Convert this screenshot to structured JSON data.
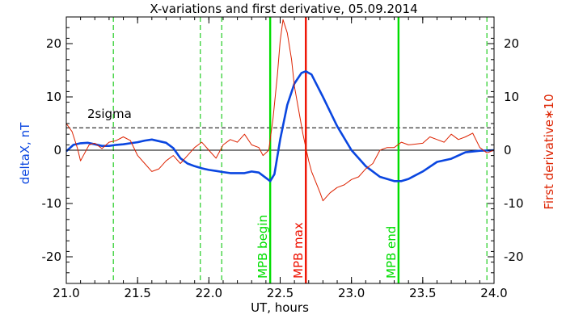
{
  "chart_data": {
    "type": "line",
    "title": "X-variations and first derivative, 05.09.2014",
    "xlabel": "UT, hours",
    "ylabel_left": "deltaX, nT",
    "ylabel_right": "First derivative∗10",
    "xlim": [
      21.0,
      24.0
    ],
    "ylim": [
      -25,
      25
    ],
    "x_ticks": [
      "21.0",
      "21.5",
      "22.0",
      "22.5",
      "23.0",
      "23.5",
      "24.0"
    ],
    "x_tick_values": [
      21.0,
      21.5,
      22.0,
      22.5,
      23.0,
      23.5,
      24.0
    ],
    "y_ticks_left": [
      "20",
      "10",
      "0",
      "-10",
      "-20"
    ],
    "y_ticks_right": [
      "20",
      "10",
      "0",
      "-10",
      "-20"
    ],
    "y_tick_values": [
      20,
      10,
      0,
      -10,
      -20
    ],
    "threshold": {
      "label": "2sigma",
      "value": 4.2
    },
    "zero_line": 0,
    "dashed_markers_x": [
      21.33,
      21.94,
      22.09,
      23.95
    ],
    "events": [
      {
        "label": "MPB begin",
        "x": 22.43,
        "color": "#00dd00"
      },
      {
        "label": "MPB max",
        "x": 22.68,
        "color": "#ee1100"
      },
      {
        "label": "MPB end",
        "x": 23.33,
        "color": "#00dd00"
      }
    ],
    "series": [
      {
        "name": "deltaX",
        "color": "#0a46e0",
        "x": [
          21.0,
          21.05,
          21.1,
          21.15,
          21.2,
          21.25,
          21.3,
          21.35,
          21.4,
          21.45,
          21.5,
          21.55,
          21.6,
          21.65,
          21.7,
          21.75,
          21.8,
          21.85,
          21.9,
          21.95,
          22.0,
          22.05,
          22.1,
          22.15,
          22.2,
          22.25,
          22.3,
          22.35,
          22.4,
          22.43,
          22.46,
          22.5,
          22.55,
          22.6,
          22.65,
          22.68,
          22.72,
          22.8,
          22.9,
          23.0,
          23.1,
          23.2,
          23.3,
          23.35,
          23.4,
          23.5,
          23.6,
          23.7,
          23.8,
          23.9,
          24.0
        ],
        "values": [
          -0.2,
          1.0,
          1.3,
          1.4,
          1.1,
          0.8,
          0.8,
          1.0,
          1.1,
          1.3,
          1.5,
          1.8,
          2.0,
          1.7,
          1.4,
          0.4,
          -1.5,
          -2.5,
          -3.0,
          -3.4,
          -3.7,
          -3.9,
          -4.1,
          -4.3,
          -4.3,
          -4.3,
          -4.0,
          -4.2,
          -5.2,
          -5.8,
          -4.5,
          2.0,
          8.5,
          12.5,
          14.5,
          14.8,
          14.2,
          10.0,
          4.5,
          0.0,
          -3.0,
          -5.0,
          -5.8,
          -5.8,
          -5.4,
          -4.0,
          -2.2,
          -1.6,
          -0.4,
          -0.1,
          0.0
        ]
      },
      {
        "name": "First derivative∗10",
        "color": "#dd2200",
        "x": [
          21.0,
          21.04,
          21.08,
          21.1,
          21.13,
          21.16,
          21.2,
          21.25,
          21.3,
          21.35,
          21.4,
          21.45,
          21.5,
          21.55,
          21.6,
          21.65,
          21.7,
          21.75,
          21.8,
          21.85,
          21.9,
          21.95,
          22.0,
          22.05,
          22.1,
          22.15,
          22.2,
          22.25,
          22.3,
          22.35,
          22.38,
          22.42,
          22.45,
          22.48,
          22.5,
          22.52,
          22.55,
          22.58,
          22.6,
          22.63,
          22.66,
          22.68,
          22.7,
          22.72,
          22.75,
          22.78,
          22.8,
          22.85,
          22.9,
          22.95,
          23.0,
          23.05,
          23.1,
          23.15,
          23.2,
          23.25,
          23.3,
          23.35,
          23.4,
          23.5,
          23.55,
          23.6,
          23.65,
          23.7,
          23.75,
          23.8,
          23.85,
          23.9,
          23.95,
          24.0
        ],
        "values": [
          5.0,
          3.5,
          0.2,
          -2.0,
          -0.5,
          1.0,
          1.3,
          0.3,
          1.5,
          1.8,
          2.5,
          1.8,
          -1.0,
          -2.5,
          -4.0,
          -3.5,
          -2.0,
          -1.0,
          -2.5,
          -1.0,
          0.5,
          1.5,
          0.0,
          -1.5,
          1.0,
          2.0,
          1.5,
          3.0,
          1.0,
          0.5,
          -1.0,
          0.0,
          6.0,
          14.0,
          20.5,
          24.5,
          22.0,
          17.0,
          12.0,
          7.5,
          3.0,
          0.5,
          -2.0,
          -4.0,
          -6.0,
          -8.0,
          -9.5,
          -8.0,
          -7.0,
          -6.5,
          -5.5,
          -5.0,
          -3.5,
          -2.5,
          0.0,
          0.5,
          0.5,
          1.5,
          1.0,
          1.3,
          2.5,
          2.0,
          1.5,
          3.0,
          2.0,
          2.5,
          3.2,
          0.5,
          -0.5,
          0.0
        ]
      }
    ]
  },
  "colors": {
    "axis": "#000000",
    "left_label": "#0a46e0",
    "right_label": "#dd2200",
    "dashed_markers": "#22cc22",
    "threshold": "#000000"
  }
}
